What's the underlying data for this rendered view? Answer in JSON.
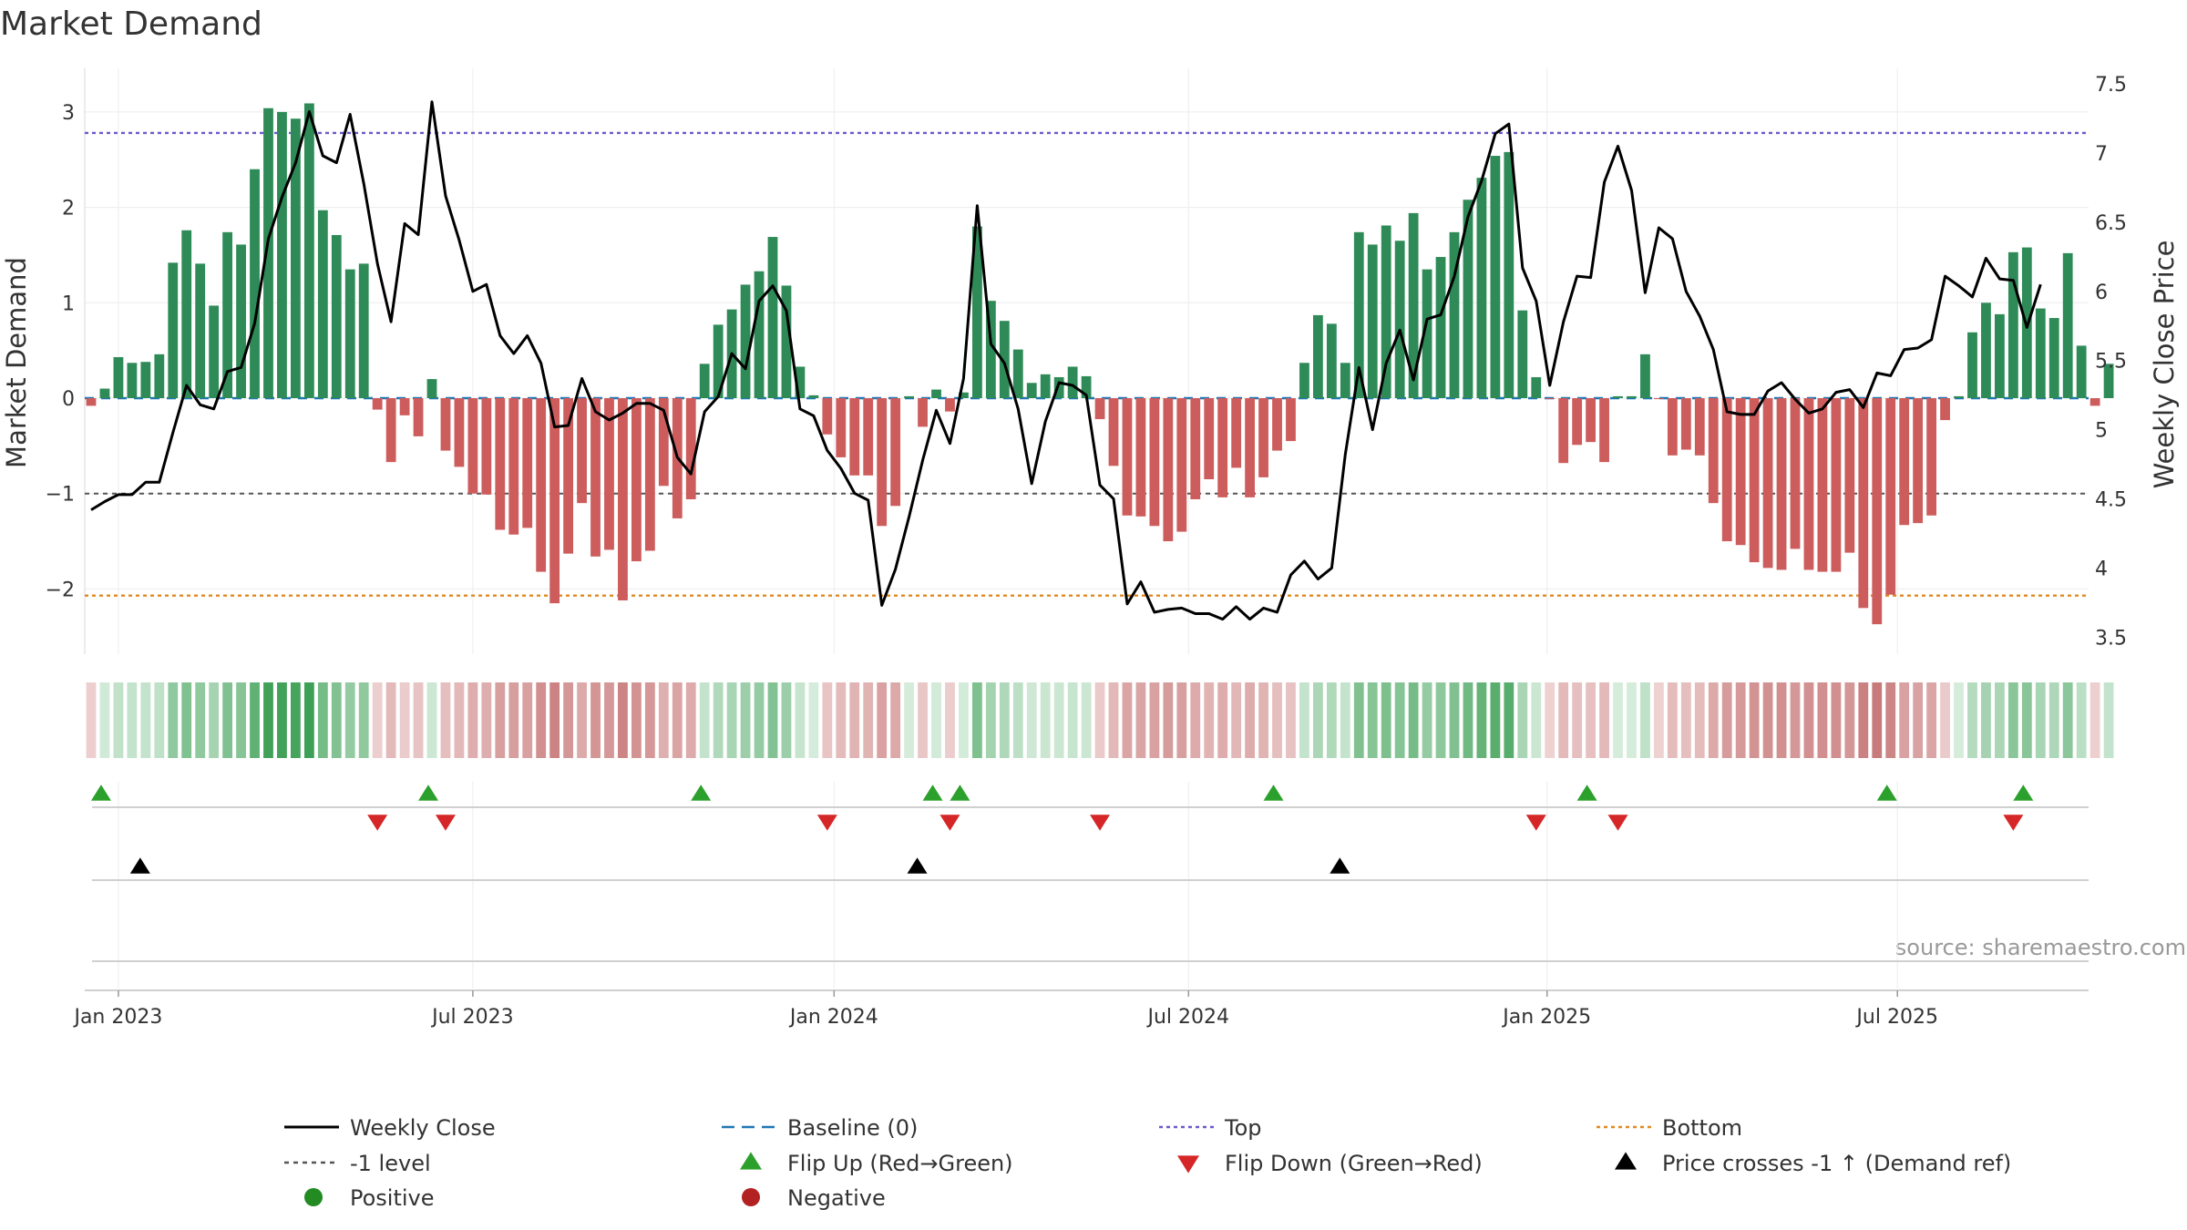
{
  "chart_data": {
    "type": "bar+line",
    "title": "Market Demand",
    "left_axis": {
      "label": "Market Demand",
      "ticks": [
        3,
        2,
        1,
        0,
        -1,
        -2
      ],
      "tick_labels": [
        "3",
        "2",
        "1",
        "0",
        "−1",
        "−2"
      ],
      "range": [
        -2.65,
        3.45
      ]
    },
    "right_axis": {
      "label": "Weekly Close Price",
      "ticks": [
        7.5,
        7,
        6.5,
        6,
        5.5,
        5,
        4.5,
        4,
        3.5
      ],
      "tick_labels": [
        "7.5",
        "7",
        "6.5",
        "6",
        "5.5",
        "5",
        "4.5",
        "4",
        "3.5"
      ],
      "range": [
        3.4,
        7.6
      ]
    },
    "x_ticks": [
      {
        "label": "Jan 2023",
        "week": 2
      },
      {
        "label": "Jul 2023",
        "week": 28
      },
      {
        "label": "Jan 2024",
        "week": 54.5
      },
      {
        "label": "Jul 2024",
        "week": 80.5
      },
      {
        "label": "Jan 2025",
        "week": 106.8
      },
      {
        "label": "Jul 2025",
        "week": 132.5
      }
    ],
    "demand_values": [
      -0.08,
      0.1,
      0.43,
      0.37,
      0.38,
      0.46,
      1.42,
      1.76,
      1.41,
      0.97,
      1.74,
      1.61,
      2.4,
      3.04,
      3.0,
      2.93,
      3.09,
      1.97,
      1.71,
      1.35,
      1.41,
      -0.12,
      -0.67,
      -0.18,
      -0.4,
      0.2,
      -0.55,
      -0.72,
      -1.0,
      -1.01,
      -1.38,
      -1.43,
      -1.36,
      -1.82,
      -2.15,
      -1.63,
      -1.1,
      -1.66,
      -1.59,
      -2.12,
      -1.71,
      -1.6,
      -0.92,
      -1.26,
      -1.06,
      0.36,
      0.77,
      0.93,
      1.19,
      1.33,
      1.69,
      1.18,
      0.33,
      0.03,
      -0.38,
      -0.62,
      -0.81,
      -0.81,
      -1.34,
      -1.13,
      0.02,
      -0.3,
      0.09,
      -0.14,
      0.06,
      1.8,
      1.02,
      0.81,
      0.51,
      0.16,
      0.25,
      0.22,
      0.33,
      0.23,
      -0.22,
      -0.71,
      -1.23,
      -1.24,
      -1.34,
      -1.5,
      -1.4,
      -1.06,
      -0.85,
      -1.04,
      -0.73,
      -1.04,
      -0.83,
      -0.55,
      -0.45,
      0.37,
      0.87,
      0.78,
      0.37,
      1.74,
      1.61,
      1.81,
      1.65,
      1.94,
      1.35,
      1.48,
      1.74,
      2.08,
      2.31,
      2.54,
      2.58,
      0.92,
      0.22,
      -0.01,
      -0.68,
      -0.49,
      -0.46,
      -0.67,
      0.02,
      0.02,
      0.46,
      -0.01,
      -0.6,
      -0.54,
      -0.6,
      -1.1,
      -1.5,
      -1.54,
      -1.72,
      -1.78,
      -1.8,
      -1.58,
      -1.8,
      -1.82,
      -1.82,
      -1.62,
      -2.2,
      -2.37,
      -2.06,
      -1.33,
      -1.31,
      -1.23,
      -0.23,
      0.02,
      0.69,
      1.0,
      0.88,
      1.53,
      1.58,
      0.94,
      0.84,
      1.52,
      0.55,
      -0.08,
      0.36
    ],
    "close_values": [
      4.42,
      4.48,
      4.53,
      4.53,
      4.62,
      4.62,
      4.98,
      5.32,
      5.18,
      5.15,
      5.42,
      5.45,
      5.77,
      6.38,
      6.68,
      6.93,
      7.3,
      6.98,
      6.93,
      7.28,
      6.78,
      6.2,
      5.78,
      6.49,
      6.41,
      7.37,
      6.69,
      6.37,
      6.0,
      6.05,
      5.68,
      5.55,
      5.68,
      5.48,
      5.02,
      5.03,
      5.37,
      5.13,
      5.07,
      5.12,
      5.19,
      5.19,
      5.14,
      4.8,
      4.68,
      5.13,
      5.24,
      5.55,
      5.44,
      5.93,
      6.04,
      5.86,
      5.15,
      5.1,
      4.85,
      4.72,
      4.54,
      4.49,
      3.73,
      3.99,
      4.37,
      4.78,
      5.14,
      4.9,
      5.37,
      6.62,
      5.62,
      5.48,
      5.15,
      4.61,
      5.06,
      5.34,
      5.32,
      5.25,
      4.6,
      4.5,
      3.74,
      3.9,
      3.68,
      3.7,
      3.71,
      3.67,
      3.67,
      3.63,
      3.72,
      3.63,
      3.71,
      3.68,
      3.95,
      4.05,
      3.92,
      4.0,
      4.82,
      5.45,
      5.0,
      5.48,
      5.72,
      5.36,
      5.8,
      5.83,
      6.11,
      6.54,
      6.8,
      7.14,
      7.21,
      6.17,
      5.93,
      5.32,
      5.78,
      6.11,
      6.1,
      6.79,
      7.05,
      6.73,
      5.99,
      6.46,
      6.38,
      6.0,
      5.82,
      5.58,
      5.13,
      5.11,
      5.11,
      5.28,
      5.34,
      5.22,
      5.12,
      5.15,
      5.27,
      5.29,
      5.16,
      5.41,
      5.39,
      5.58,
      5.59,
      5.65,
      6.11,
      6.04,
      5.96,
      6.24,
      6.09,
      6.08,
      5.74,
      6.05
    ],
    "flip_up_weeks": [
      1,
      25,
      45,
      62,
      64,
      87,
      110,
      132,
      142
    ],
    "flip_down_weeks": [
      21,
      26,
      54,
      63,
      74,
      106,
      112,
      141
    ],
    "price_cross_weeks": [
      4,
      61,
      92
    ],
    "reference_lines": {
      "top": 2.78,
      "bottom": -2.07,
      "minus_one": -1,
      "baseline": 0
    },
    "colors": {
      "positive": "#2E8B57",
      "negative": "#CD5C5C",
      "close": "#000000",
      "top": "#6A5ACD",
      "bottom": "#E08A1E",
      "minus_one": "#555555",
      "baseline": "#1F77B4",
      "flip_up": "#2CA02C",
      "flip_down": "#D62728",
      "cross": "#000000",
      "positive_dot": "#228B22",
      "negative_dot": "#B22222"
    },
    "legend": [
      {
        "label": "Weekly Close",
        "style": "line"
      },
      {
        "label": "Baseline (0)",
        "style": "dash"
      },
      {
        "label": "Top",
        "style": "dot-blue"
      },
      {
        "label": "Bottom",
        "style": "dot-orange"
      },
      {
        "label": "-1 level",
        "style": "dot-gray"
      },
      {
        "label": "Flip Up (Red→Green)",
        "style": "tri-up-green"
      },
      {
        "label": "Flip Down (Green→Red)",
        "style": "tri-down-red"
      },
      {
        "label": "Price crosses -1 ↑ (Demand ref)",
        "style": "tri-up-black"
      },
      {
        "label": "Positive",
        "style": "dot-green"
      },
      {
        "label": "Negative",
        "style": "dot-red"
      }
    ],
    "source": "source: sharemaestro.com"
  }
}
